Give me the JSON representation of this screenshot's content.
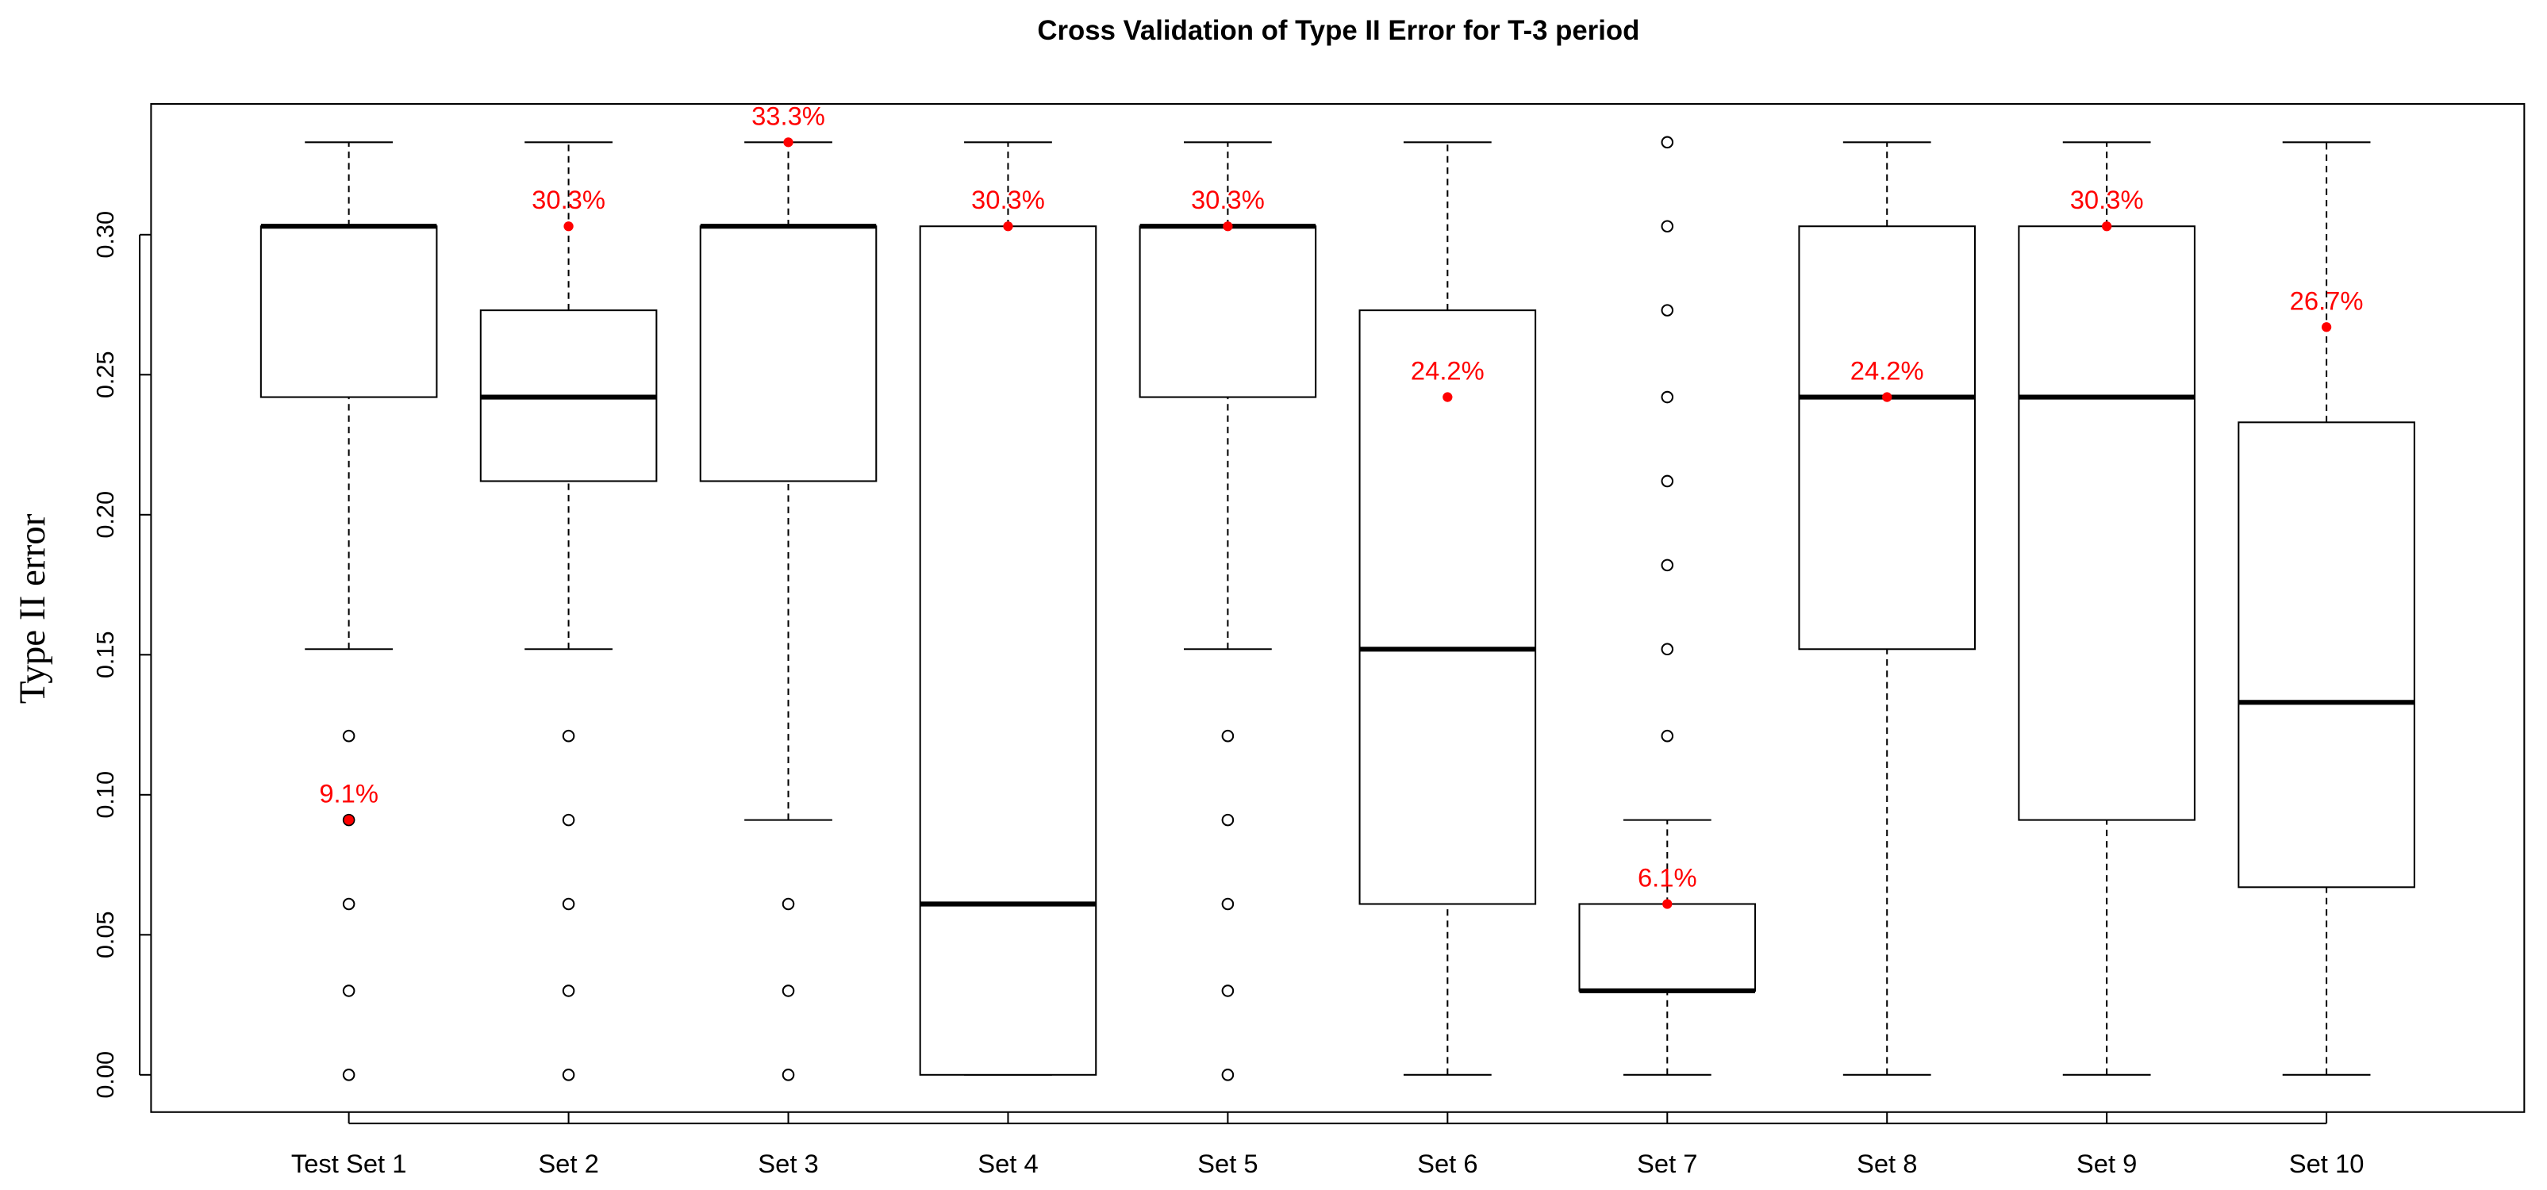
{
  "chart_data": {
    "type": "box",
    "title": "Cross Validation of Type II Error for T-3 period",
    "y_label": "Type II error",
    "categories": [
      "Test Set 1",
      "Set 2",
      "Set 3",
      "Set 4",
      "Set 5",
      "Set 6",
      "Set 7",
      "Set 8",
      "Set 9",
      "Set 10"
    ],
    "boxes": [
      {
        "low": 0.152,
        "q1": 0.242,
        "median": 0.303,
        "q3": 0.303,
        "high": 0.333,
        "outliers": [
          0.121,
          0.091,
          0.061,
          0.03,
          0
        ]
      },
      {
        "low": 0.152,
        "q1": 0.212,
        "median": 0.242,
        "q3": 0.273,
        "high": 0.333,
        "outliers": [
          0.121,
          0.091,
          0.061,
          0.03,
          0
        ]
      },
      {
        "low": 0.091,
        "q1": 0.212,
        "median": 0.303,
        "q3": 0.303,
        "high": 0.333,
        "outliers": [
          0.061,
          0.03,
          0
        ]
      },
      {
        "low": 0,
        "q1": 0,
        "median": 0.061,
        "q3": 0.303,
        "high": 0.333,
        "outliers": []
      },
      {
        "low": 0.152,
        "q1": 0.242,
        "median": 0.303,
        "q3": 0.303,
        "high": 0.333,
        "outliers": [
          0.121,
          0.091,
          0.061,
          0.03,
          0
        ]
      },
      {
        "low": 0,
        "q1": 0.061,
        "median": 0.152,
        "q3": 0.273,
        "high": 0.333,
        "outliers": []
      },
      {
        "low": 0,
        "q1": 0.03,
        "median": 0.03,
        "q3": 0.061,
        "high": 0.091,
        "outliers": [
          0.121,
          0.152,
          0.182,
          0.212,
          0.242,
          0.273,
          0.303,
          0.333
        ]
      },
      {
        "low": 0,
        "q1": 0.152,
        "median": 0.242,
        "q3": 0.303,
        "high": 0.333,
        "outliers": []
      },
      {
        "low": 0,
        "q1": 0.091,
        "median": 0.242,
        "q3": 0.303,
        "high": 0.333,
        "outliers": []
      },
      {
        "low": 0,
        "q1": 0.067,
        "median": 0.133,
        "q3": 0.233,
        "high": 0.333,
        "outliers": []
      }
    ],
    "highlights": {
      "color": "#ff0000",
      "values": [
        0.091,
        0.303,
        0.333,
        0.303,
        0.303,
        0.242,
        0.061,
        0.242,
        0.303,
        0.267
      ],
      "value_labels": [
        "9.1%",
        "30.3%",
        "33.3%",
        "30.3%",
        "30.3%",
        "24.2%",
        "6.1%",
        "24.2%",
        "30.3%",
        "26.7%"
      ]
    },
    "ylim": [
      -0.0133,
      0.3467
    ],
    "yticks": [
      {
        "value": 0,
        "label": "0.00"
      },
      0.05,
      {
        "value": 0.1,
        "label": "0.10"
      },
      0.15,
      {
        "value": 0.2,
        "label": "0.20"
      },
      0.25,
      {
        "value": 0.3,
        "label": "0.30"
      }
    ]
  }
}
